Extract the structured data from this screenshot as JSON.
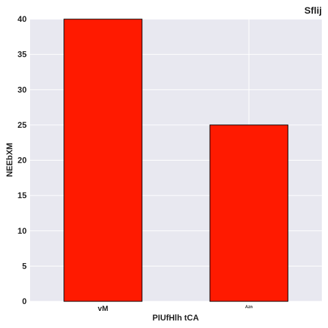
{
  "chart_data": {
    "type": "bar",
    "title": "Sflij",
    "xlabel": "PIUfHlh tCA",
    "ylabel": "NEEbXM",
    "categories": [
      "vM",
      "Azn"
    ],
    "values": [
      40,
      25
    ],
    "ylim": [
      0,
      40
    ],
    "yticks": [
      0,
      5,
      10,
      15,
      20,
      25,
      30,
      35,
      40
    ],
    "grid": true,
    "legend": "none",
    "colors": {
      "bar": "#ff1a00",
      "bar_edge": "#000000",
      "plot_background": "#e8e8f0",
      "grid": "#ffffff"
    }
  }
}
